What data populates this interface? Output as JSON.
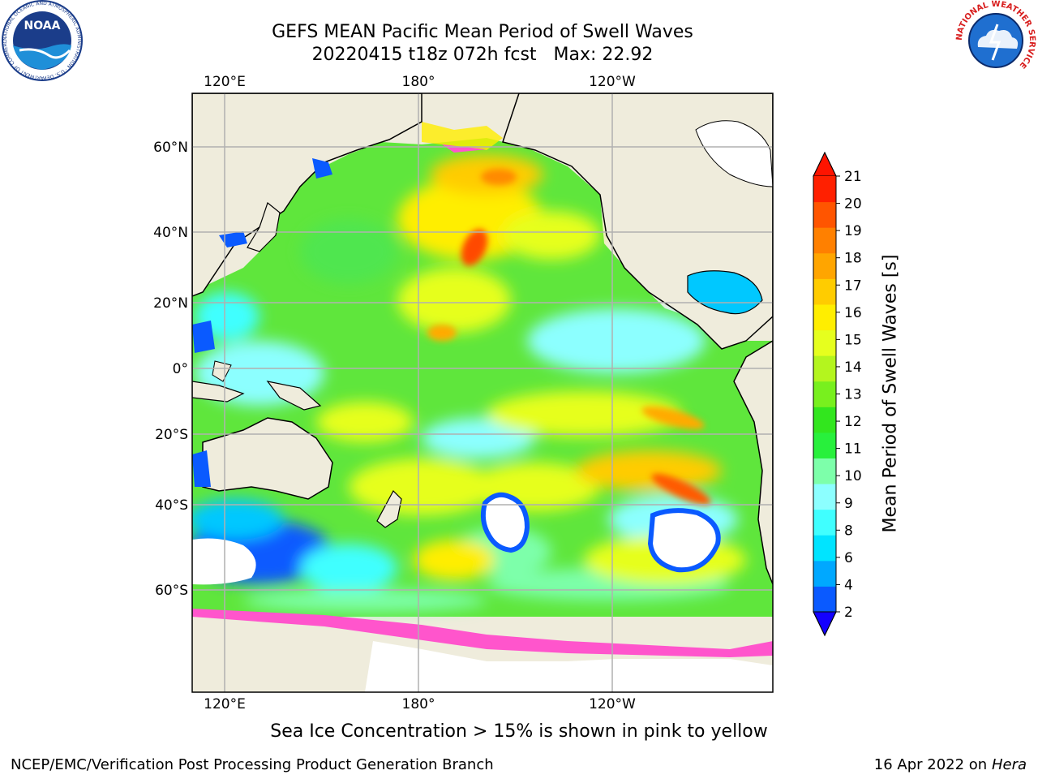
{
  "title": "GEFS MEAN Pacific Mean Period of Swell Waves",
  "subtitle_run": "20220415 t18z 072h fcst",
  "max_label": "Max: 22.92",
  "sea_ice_note": "Sea Ice Concentration > 15% is shown in pink to yellow",
  "credit": "NCEP/EMC/Verification Post Processing Product Generation Branch",
  "date_prefix": "16 Apr 2022 on",
  "machine": "Hera",
  "logos": {
    "left": {
      "icon": "noaa-logo",
      "ring_text": "NATIONAL OCEANIC AND ATMOSPHERIC ADMINISTRATION · U.S. DEPARTMENT OF COMMERCE",
      "center_text": "NOAA"
    },
    "right": {
      "icon": "nws-logo",
      "ring_text": "NATIONAL WEATHER SERVICE"
    }
  },
  "map": {
    "projection": "equirectangular",
    "lon_ticks_top": [
      "120°E",
      "180°",
      "120°W"
    ],
    "lon_ticks_bottom": [
      "120°E",
      "180°",
      "120°W"
    ],
    "lat_ticks": [
      "60°N",
      "40°N",
      "20°N",
      "0°",
      "20°S",
      "40°S",
      "60°S"
    ],
    "gridlines": true,
    "colors": {
      "land": "#efecdc",
      "no_swell": "#ffffff",
      "gridline": "#b0b0b0",
      "coast": "#000000"
    }
  },
  "colorbar": {
    "label": "Mean Period of Swell Waves [s]",
    "tick_labels": [
      "2",
      "4",
      "6",
      "8",
      "9",
      "10",
      "11",
      "12",
      "13",
      "14",
      "15",
      "16",
      "17",
      "18",
      "19",
      "20",
      "21"
    ],
    "colors": [
      "#0a5aff",
      "#00a8ff",
      "#00e4ff",
      "#40ffff",
      "#8cffff",
      "#7dffaa",
      "#28f03c",
      "#32e61e",
      "#78f01e",
      "#b4f51e",
      "#e6ff1e",
      "#ffee00",
      "#ffcc00",
      "#ffa500",
      "#ff8000",
      "#ff5500",
      "#ff2000"
    ],
    "under_color": "#1400ff",
    "over_color": "#ff1400",
    "extend": "both"
  }
}
